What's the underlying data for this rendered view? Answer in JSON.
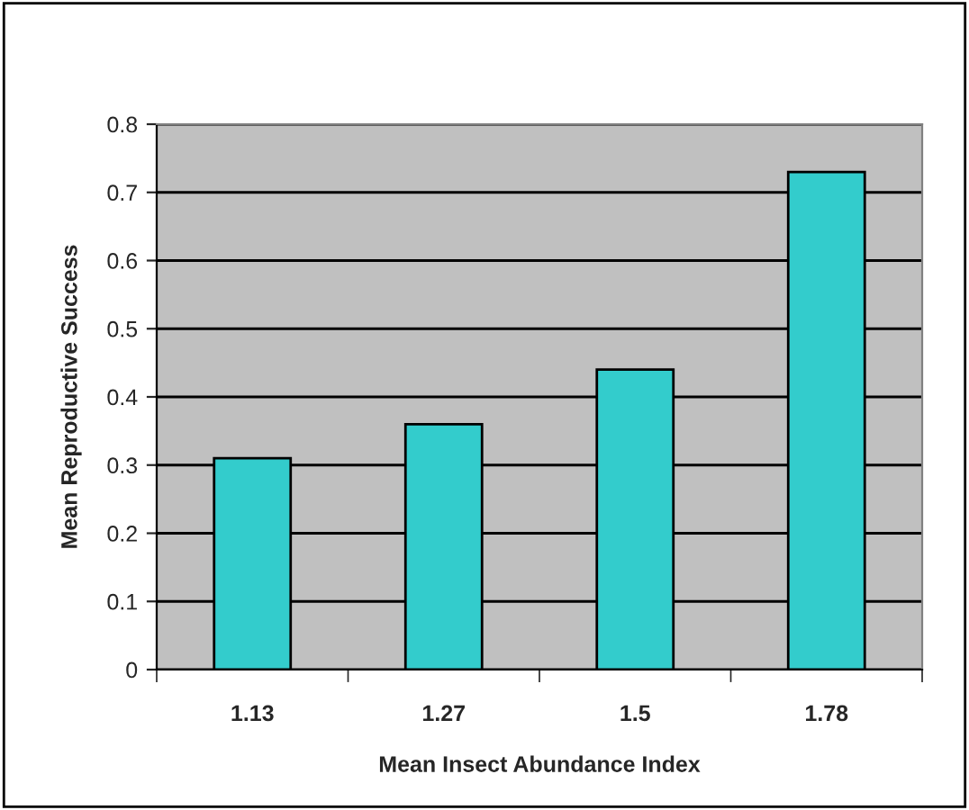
{
  "chart_data": {
    "type": "bar",
    "xlabel": "Mean Insect Abundance Index",
    "ylabel": "Mean Reproductive Success",
    "categories": [
      "1.13",
      "1.27",
      "1.5",
      "1.78"
    ],
    "values": [
      0.31,
      0.36,
      0.44,
      0.73
    ],
    "color": "#33cccc",
    "ylim": [
      0,
      0.8
    ],
    "yticks": [
      {
        "value": 0,
        "label": "0"
      },
      0.1,
      0.2,
      0.3,
      0.4,
      0.5,
      0.6,
      0.7,
      0.8
    ],
    "grid": "y"
  }
}
